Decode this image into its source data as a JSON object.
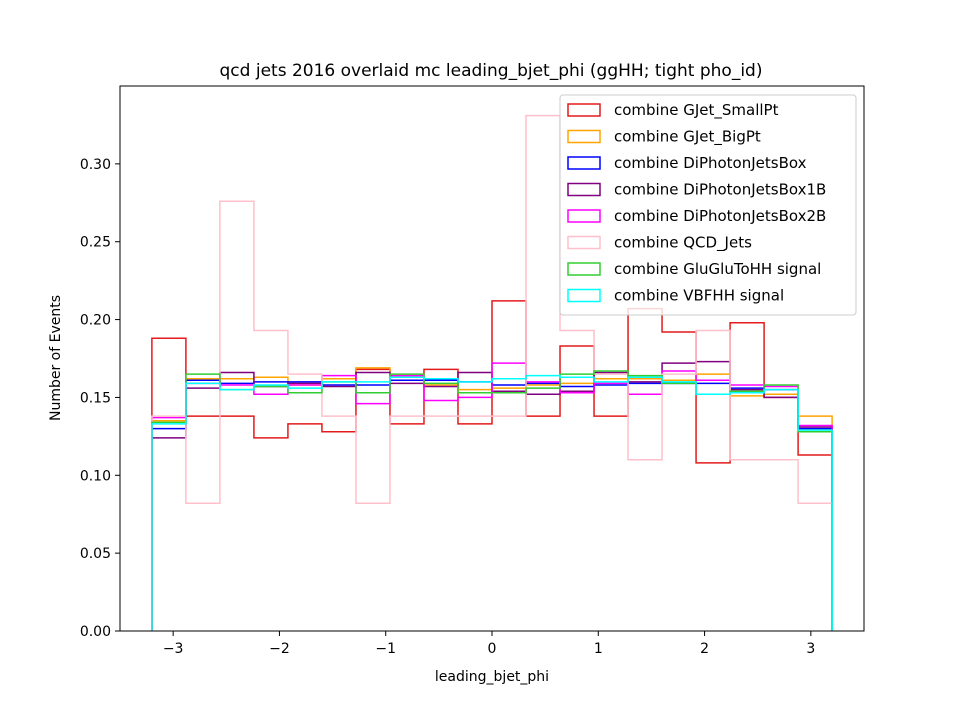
{
  "chart_data": {
    "type": "histogram-step",
    "title": "qcd jets 2016 overlaid mc leading_bjet_phi (ggHH; tight pho_id)",
    "xlabel": "leading_bjet_phi",
    "ylabel": "Number of Events",
    "xlim": [
      -3.5,
      3.5
    ],
    "ylim": [
      0.0,
      0.35
    ],
    "x_ticks": [
      -3,
      -2,
      -1,
      0,
      1,
      2,
      3
    ],
    "x_tick_labels": [
      "−3",
      "−2",
      "−1",
      "0",
      "1",
      "2",
      "3"
    ],
    "y_ticks": [
      0.0,
      0.05,
      0.1,
      0.15,
      0.2,
      0.25,
      0.3
    ],
    "y_tick_labels": [
      "0.00",
      "0.05",
      "0.10",
      "0.15",
      "0.20",
      "0.25",
      "0.30"
    ],
    "bin_edges": [
      -3.2,
      -2.88,
      -2.56,
      -2.24,
      -1.92,
      -1.6,
      -1.28,
      -0.96,
      -0.64,
      -0.32,
      0.0,
      0.32,
      0.64,
      0.96,
      1.28,
      1.6,
      1.92,
      2.24,
      2.56,
      2.88,
      3.2
    ],
    "legend_position": "top-right",
    "series": [
      {
        "name": "combine GJet_SmallPt",
        "color": "#e41a1c",
        "values": [
          0.188,
          0.138,
          0.138,
          0.124,
          0.133,
          0.128,
          0.168,
          0.133,
          0.168,
          0.133,
          0.212,
          0.138,
          0.183,
          0.138,
          0.207,
          0.192,
          0.108,
          0.198,
          0.15,
          0.113
        ]
      },
      {
        "name": "combine GJet_BigPt",
        "color": "#ffa500",
        "values": [
          0.135,
          0.162,
          0.162,
          0.163,
          0.158,
          0.162,
          0.169,
          0.164,
          0.158,
          0.155,
          0.156,
          0.158,
          0.159,
          0.162,
          0.162,
          0.161,
          0.165,
          0.151,
          0.152,
          0.138
        ]
      },
      {
        "name": "combine DiPhotonJetsBox",
        "color": "#0000ff",
        "values": [
          0.13,
          0.161,
          0.159,
          0.16,
          0.16,
          0.158,
          0.158,
          0.161,
          0.161,
          0.16,
          0.158,
          0.159,
          0.157,
          0.158,
          0.159,
          0.159,
          0.159,
          0.156,
          0.155,
          0.13
        ]
      },
      {
        "name": "combine DiPhotonJetsBox1B",
        "color": "#800080",
        "values": [
          0.124,
          0.156,
          0.166,
          0.157,
          0.159,
          0.157,
          0.166,
          0.159,
          0.157,
          0.166,
          0.154,
          0.152,
          0.154,
          0.166,
          0.16,
          0.172,
          0.173,
          0.155,
          0.15,
          0.131
        ]
      },
      {
        "name": "combine DiPhotonJetsBox2B",
        "color": "#ff00ff",
        "values": [
          0.137,
          0.159,
          0.158,
          0.152,
          0.158,
          0.164,
          0.146,
          0.164,
          0.148,
          0.15,
          0.172,
          0.16,
          0.153,
          0.159,
          0.152,
          0.167,
          0.161,
          0.158,
          0.157,
          0.132
        ]
      },
      {
        "name": "combine QCD_Jets",
        "color": "#ffc0cb",
        "values": [
          0.138,
          0.082,
          0.276,
          0.193,
          0.165,
          0.138,
          0.082,
          0.138,
          0.138,
          0.138,
          0.138,
          0.331,
          0.193,
          0.165,
          0.11,
          0.165,
          0.193,
          0.11,
          0.11,
          0.082
        ]
      },
      {
        "name": "combine GluGluToHH signal",
        "color": "#32cd32",
        "values": [
          0.134,
          0.165,
          0.155,
          0.157,
          0.153,
          0.16,
          0.153,
          0.165,
          0.159,
          0.153,
          0.153,
          0.156,
          0.165,
          0.167,
          0.164,
          0.159,
          0.152,
          0.154,
          0.158,
          0.128
        ]
      },
      {
        "name": "combine VBFHH signal",
        "color": "#00ffff",
        "values": [
          0.133,
          0.159,
          0.155,
          0.158,
          0.156,
          0.16,
          0.16,
          0.163,
          0.162,
          0.16,
          0.162,
          0.164,
          0.163,
          0.16,
          0.163,
          0.16,
          0.152,
          0.153,
          0.155,
          0.129
        ]
      }
    ]
  }
}
